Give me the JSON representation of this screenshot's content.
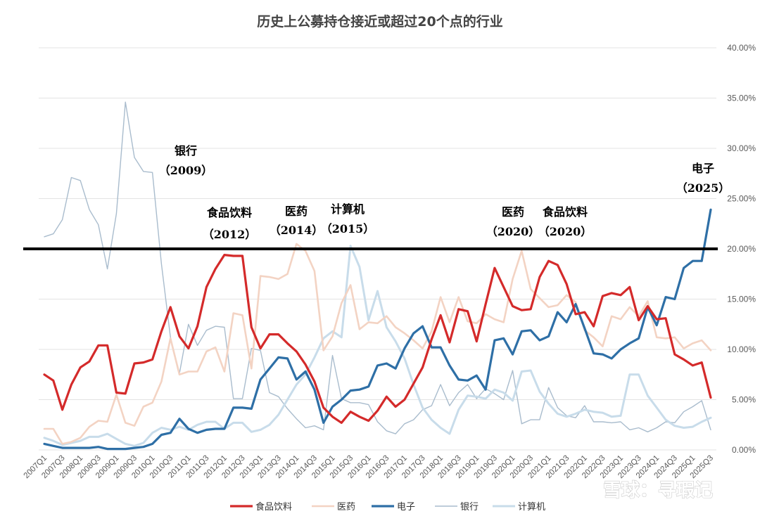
{
  "watermark": "雪球：寻瑕记",
  "chart_data": {
    "type": "line",
    "title": "历史上公募持仓接近或超过20个点的行业",
    "ylim": [
      0,
      40
    ],
    "yticks": [
      0,
      5,
      10,
      15,
      20,
      25,
      30,
      35,
      40
    ],
    "ytick_labels": [
      "0.00%",
      "5.00%",
      "10.00%",
      "15.00%",
      "20.00%",
      "25.00%",
      "30.00%",
      "35.00%",
      "40.00%"
    ],
    "threshold": 20,
    "categories": [
      "2007Q1",
      "2007Q2",
      "2007Q3",
      "2007Q4",
      "2008Q1",
      "2008Q2",
      "2008Q3",
      "2008Q4",
      "2009Q1",
      "2009Q2",
      "2009Q3",
      "2009Q4",
      "2010Q1",
      "2010Q2",
      "2010Q3",
      "2010Q4",
      "2011Q1",
      "2011Q2",
      "2011Q3",
      "2011Q4",
      "2012Q1",
      "2012Q2",
      "2012Q3",
      "2012Q4",
      "2013Q1",
      "2013Q2",
      "2013Q3",
      "2013Q4",
      "2014Q1",
      "2014Q2",
      "2014Q3",
      "2014Q4",
      "2015Q1",
      "2015Q2",
      "2015Q3",
      "2015Q4",
      "2016Q1",
      "2016Q2",
      "2016Q3",
      "2016Q4",
      "2017Q1",
      "2017Q2",
      "2017Q3",
      "2017Q4",
      "2018Q1",
      "2018Q2",
      "2018Q3",
      "2018Q4",
      "2019Q1",
      "2019Q2",
      "2019Q3",
      "2019Q4",
      "2020Q1",
      "2020Q2",
      "2020Q3",
      "2020Q4",
      "2021Q1",
      "2021Q2",
      "2021Q3",
      "2021Q4",
      "2022Q1",
      "2022Q2",
      "2022Q3",
      "2022Q4",
      "2023Q1",
      "2023Q2",
      "2023Q3",
      "2023Q4",
      "2024Q1",
      "2024Q2",
      "2024Q3",
      "2024Q4",
      "2025Q1",
      "2025Q2",
      "2025Q3"
    ],
    "tick_labels": [
      "2007Q1",
      "2007Q3",
      "2008Q1",
      "2008Q3",
      "2009Q1",
      "2009Q3",
      "2010Q1",
      "2010Q3",
      "2011Q1",
      "2011Q3",
      "2012Q1",
      "2012Q3",
      "2013Q1",
      "2013Q3",
      "2014Q1",
      "2014Q3",
      "2015Q1",
      "2015Q3",
      "2016Q1",
      "2016Q3",
      "2017Q1",
      "2017Q3",
      "2018Q1",
      "2018Q3",
      "2019Q1",
      "2019Q3",
      "2020Q1",
      "2020Q3",
      "2021Q1",
      "2021Q3",
      "2022Q1",
      "2022Q3",
      "2023Q1",
      "2023Q3",
      "2024Q1",
      "2024Q3",
      "2025Q1",
      "2025Q3"
    ],
    "series": [
      {
        "name": "食品饮料",
        "color": "#d42a2a",
        "width": 3.2,
        "values": [
          7.5,
          6.9,
          4.0,
          6.5,
          8.2,
          8.8,
          10.4,
          10.4,
          5.7,
          5.6,
          8.6,
          8.7,
          9.0,
          11.8,
          14.2,
          11.3,
          10.1,
          12.3,
          16.2,
          18.0,
          19.4,
          19.3,
          19.3,
          12.2,
          10.1,
          11.5,
          11.5,
          10.6,
          9.8,
          8.5,
          6.8,
          4.2,
          3.3,
          2.7,
          3.8,
          3.3,
          2.9,
          3.9,
          5.3,
          4.3,
          5.0,
          6.6,
          8.2,
          11.0,
          13.4,
          10.7,
          14.0,
          13.8,
          10.8,
          14.5,
          18.1,
          16.2,
          14.3,
          13.9,
          14.0,
          17.2,
          18.8,
          18.4,
          16.5,
          13.5,
          13.7,
          12.3,
          15.3,
          15.6,
          15.4,
          16.2,
          12.9,
          14.3,
          13.0,
          13.1,
          9.5,
          9.0,
          8.4,
          8.7,
          5.2
        ]
      },
      {
        "name": "医药",
        "color": "#f3d3c3",
        "width": 2.6,
        "values": [
          2.1,
          2.1,
          0.6,
          0.8,
          1.2,
          2.3,
          2.9,
          2.8,
          5.5,
          2.7,
          2.4,
          4.3,
          4.7,
          6.8,
          11.1,
          7.5,
          7.8,
          7.8,
          9.8,
          10.2,
          7.8,
          13.6,
          13.4,
          8.1,
          17.3,
          17.2,
          17.0,
          17.5,
          20.5,
          19.8,
          17.8,
          9.9,
          11.3,
          14.6,
          16.4,
          12.0,
          12.7,
          12.6,
          13.3,
          12.2,
          11.6,
          10.9,
          10.1,
          11.8,
          15.2,
          12.7,
          15.2,
          12.8,
          12.6,
          13.5,
          13.0,
          12.7,
          17.0,
          19.8,
          16.0,
          15.1,
          14.2,
          14.4,
          15.4,
          14.7,
          11.9,
          11.2,
          10.3,
          13.3,
          13.0,
          14.2,
          13.3,
          14.8,
          11.2,
          11.1,
          11.2,
          10.1,
          10.6,
          10.9,
          9.9
        ]
      },
      {
        "name": "电子",
        "color": "#2e6fa6",
        "width": 3.2,
        "values": [
          0.6,
          0.4,
          0.2,
          0.2,
          0.2,
          0.2,
          0.3,
          0.1,
          0.1,
          0.1,
          0.2,
          0.3,
          0.6,
          1.5,
          1.7,
          3.1,
          2.1,
          1.7,
          2.0,
          2.1,
          2.1,
          4.2,
          4.2,
          4.1,
          7.0,
          8.1,
          9.2,
          9.1,
          7.0,
          7.8,
          6.0,
          2.7,
          4.3,
          5.0,
          5.9,
          6.0,
          6.3,
          8.4,
          8.6,
          8.1,
          10.1,
          11.6,
          12.3,
          10.2,
          10.2,
          8.4,
          7.0,
          6.9,
          7.4,
          6.0,
          10.9,
          11.1,
          9.5,
          11.8,
          11.9,
          10.9,
          11.3,
          13.7,
          12.7,
          14.5,
          12.1,
          9.6,
          9.5,
          9.1,
          10.0,
          10.6,
          11.1,
          14.2,
          12.4,
          15.2,
          15.0,
          18.1,
          18.8,
          18.8,
          23.9
        ]
      },
      {
        "name": "银行",
        "color": "#a9bccd",
        "width": 1.4,
        "values": [
          21.2,
          21.5,
          22.9,
          27.1,
          26.8,
          23.9,
          22.4,
          18.0,
          23.5,
          34.6,
          29.1,
          27.7,
          27.6,
          18.5,
          11.2,
          7.6,
          12.5,
          10.4,
          11.9,
          12.3,
          12.2,
          5.1,
          5.1,
          10.1,
          9.9,
          5.7,
          5.3,
          4.1,
          3.1,
          2.2,
          2.4,
          2.0,
          9.4,
          5.1,
          4.7,
          4.7,
          4.5,
          2.8,
          1.9,
          1.6,
          2.6,
          3.0,
          4.0,
          4.4,
          6.5,
          4.4,
          5.7,
          6.5,
          5.1,
          6.1,
          5.6,
          5.0,
          7.9,
          2.6,
          3.0,
          3.0,
          6.2,
          4.2,
          3.4,
          3.2,
          4.4,
          2.8,
          2.8,
          2.7,
          2.8,
          2.0,
          2.2,
          1.8,
          2.2,
          2.8,
          2.7,
          3.8,
          4.3,
          4.9,
          2.0
        ]
      },
      {
        "name": "计算机",
        "color": "#c8dcea",
        "width": 3.0,
        "values": [
          1.2,
          0.9,
          0.5,
          0.7,
          0.9,
          1.3,
          1.3,
          1.6,
          1.1,
          0.6,
          0.4,
          0.7,
          1.7,
          2.2,
          2.0,
          2.3,
          2.0,
          2.5,
          2.8,
          2.8,
          2.1,
          2.7,
          2.7,
          1.8,
          2.0,
          2.5,
          3.5,
          5.0,
          6.5,
          7.5,
          9.2,
          11.1,
          11.8,
          11.2,
          20.3,
          18.2,
          12.9,
          15.8,
          12.2,
          10.8,
          9.1,
          6.5,
          4.2,
          3.0,
          2.2,
          1.6,
          4.0,
          5.4,
          5.3,
          5.1,
          6.0,
          5.7,
          4.9,
          7.8,
          7.9,
          5.8,
          4.6,
          3.6,
          3.3,
          3.6,
          4.0,
          3.8,
          3.7,
          3.3,
          3.4,
          7.5,
          7.5,
          5.4,
          4.2,
          3.0,
          2.4,
          2.2,
          2.3,
          2.8,
          3.2
        ]
      }
    ],
    "annotations": [
      {
        "label": "银行",
        "year": "（2009）"
      },
      {
        "label": "食品饮料",
        "year": "（2012）"
      },
      {
        "label": "医药",
        "year": "（2014）"
      },
      {
        "label": "计算机",
        "year": "（2015）"
      },
      {
        "label": "医药",
        "year": "（2020）"
      },
      {
        "label": "食品饮料",
        "year": "（2020）"
      },
      {
        "label": "电子",
        "year": "（2025）"
      }
    ],
    "legend": {
      "position": "bottom",
      "entries": [
        "食品饮料",
        "医药",
        "电子",
        "银行",
        "计算机"
      ]
    }
  }
}
